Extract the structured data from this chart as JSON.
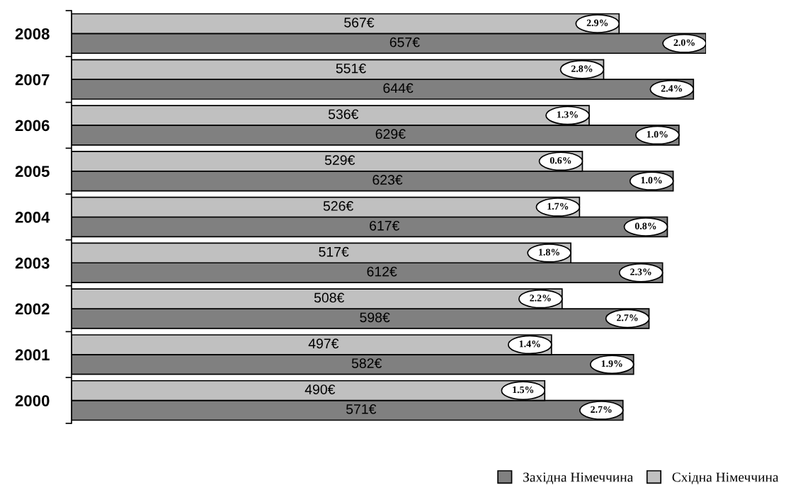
{
  "chart_data": {
    "type": "bar",
    "orientation": "horizontal",
    "categories": [
      "2008",
      "2007",
      "2006",
      "2005",
      "2004",
      "2003",
      "2002",
      "2001",
      "2000"
    ],
    "series": [
      {
        "name": "Західна Німеччина",
        "color": "#808080",
        "values": [
          657,
          644,
          629,
          623,
          617,
          612,
          598,
          582,
          571
        ],
        "value_labels": [
          "657€",
          "644€",
          "629€",
          "623€",
          "617€",
          "612€",
          "598€",
          "582€",
          "571€"
        ]
      },
      {
        "name": "Східна Німеччина",
        "color": "#c0c0c0",
        "values": [
          567,
          551,
          536,
          529,
          526,
          517,
          508,
          497,
          490
        ],
        "value_labels": [
          "567€",
          "551€",
          "536€",
          "529€",
          "526€",
          "517€",
          "508€",
          "497€",
          "490€"
        ]
      }
    ],
    "annotations": [
      {
        "text": "2.0%",
        "x": 657,
        "y": "2008"
      },
      {
        "text": "2.9%",
        "x": 567,
        "y": "2008"
      },
      {
        "text": "2.4%",
        "x": 644,
        "y": "2007"
      },
      {
        "text": "2.8%",
        "x": 551,
        "y": "2007"
      },
      {
        "text": "1.0%",
        "x": 629,
        "y": "2006"
      },
      {
        "text": "1.3%",
        "x": 536,
        "y": "2006"
      },
      {
        "text": "1.0%",
        "x": 623,
        "y": "2005"
      },
      {
        "text": "0.6%",
        "x": 529,
        "y": "2005"
      },
      {
        "text": "0.8%",
        "x": 617,
        "y": "2004"
      },
      {
        "text": "1.7%",
        "x": 526,
        "y": "2004"
      },
      {
        "text": "2.3%",
        "x": 612,
        "y": "2003"
      },
      {
        "text": "1.8%",
        "x": 517,
        "y": "2003"
      },
      {
        "text": "2.7%",
        "x": 598,
        "y": "2002"
      },
      {
        "text": "2.2%",
        "x": 508,
        "y": "2002"
      },
      {
        "text": "1.9%",
        "x": 582,
        "y": "2001"
      },
      {
        "text": "1.4%",
        "x": 497,
        "y": "2001"
      },
      {
        "text": "2.7%",
        "x": 571,
        "y": "2000"
      },
      {
        "text": "1.5%",
        "x": 490,
        "y": "2000"
      }
    ],
    "legend": "bottom right",
    "grid": false
  }
}
